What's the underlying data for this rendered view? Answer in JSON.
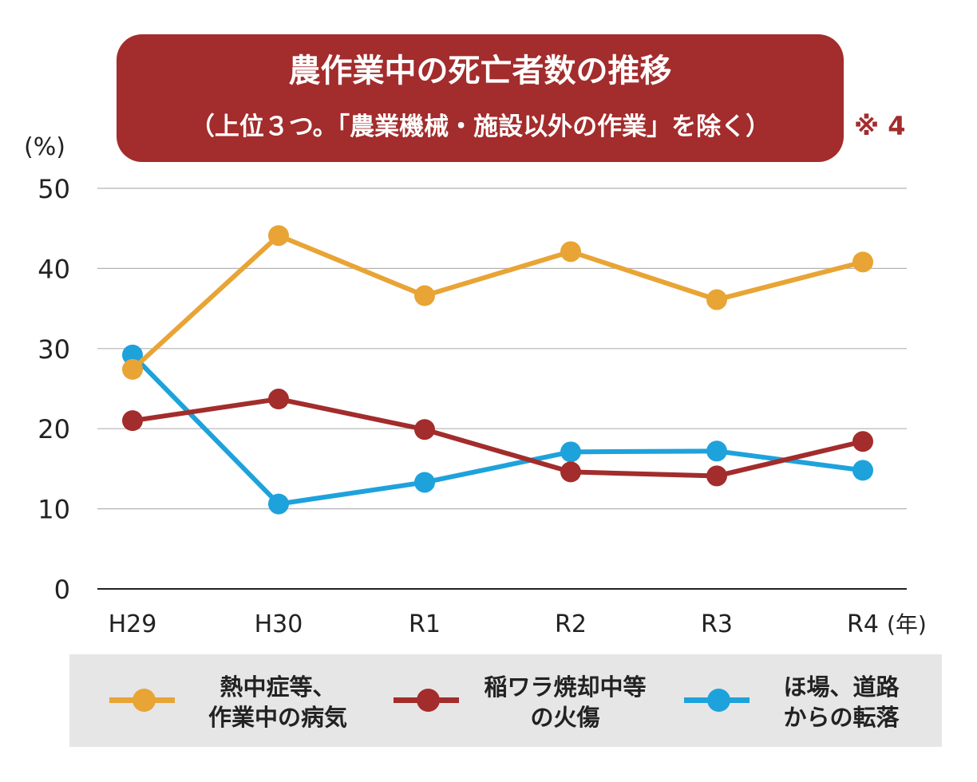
{
  "title": {
    "main": "農作業中の死亡者数の推移",
    "sub": "（上位３つ。「農業機械・施設以外の作業」を除く）",
    "note": "※ 4"
  },
  "colors": {
    "title_bg": "#a32c2c",
    "legend_bg": "#e6e6e6",
    "grid": "#b3b3b3"
  },
  "chart_data": {
    "type": "line",
    "ylabel": "(%)",
    "x_unit": "(年)",
    "categories": [
      "H29",
      "H30",
      "R1",
      "R2",
      "R3",
      "R4"
    ],
    "ylim": [
      0,
      50
    ],
    "yticks": [
      0,
      10,
      20,
      30,
      40,
      50
    ],
    "grid": true,
    "legend_position": "bottom",
    "series": [
      {
        "name": "熱中症等、\n作業中の病気",
        "color": "#e8a435",
        "values": [
          27.4,
          44.1,
          36.6,
          42.1,
          36.1,
          40.8
        ]
      },
      {
        "name": "稲ワラ焼却中等\nの火傷",
        "color": "#a32c2c",
        "values": [
          21.0,
          23.7,
          19.9,
          14.6,
          14.1,
          18.4
        ]
      },
      {
        "name": "ほ場、道路\nからの転落",
        "color": "#1ea2dc",
        "values": [
          29.2,
          10.6,
          13.3,
          17.1,
          17.2,
          14.8
        ]
      }
    ]
  }
}
